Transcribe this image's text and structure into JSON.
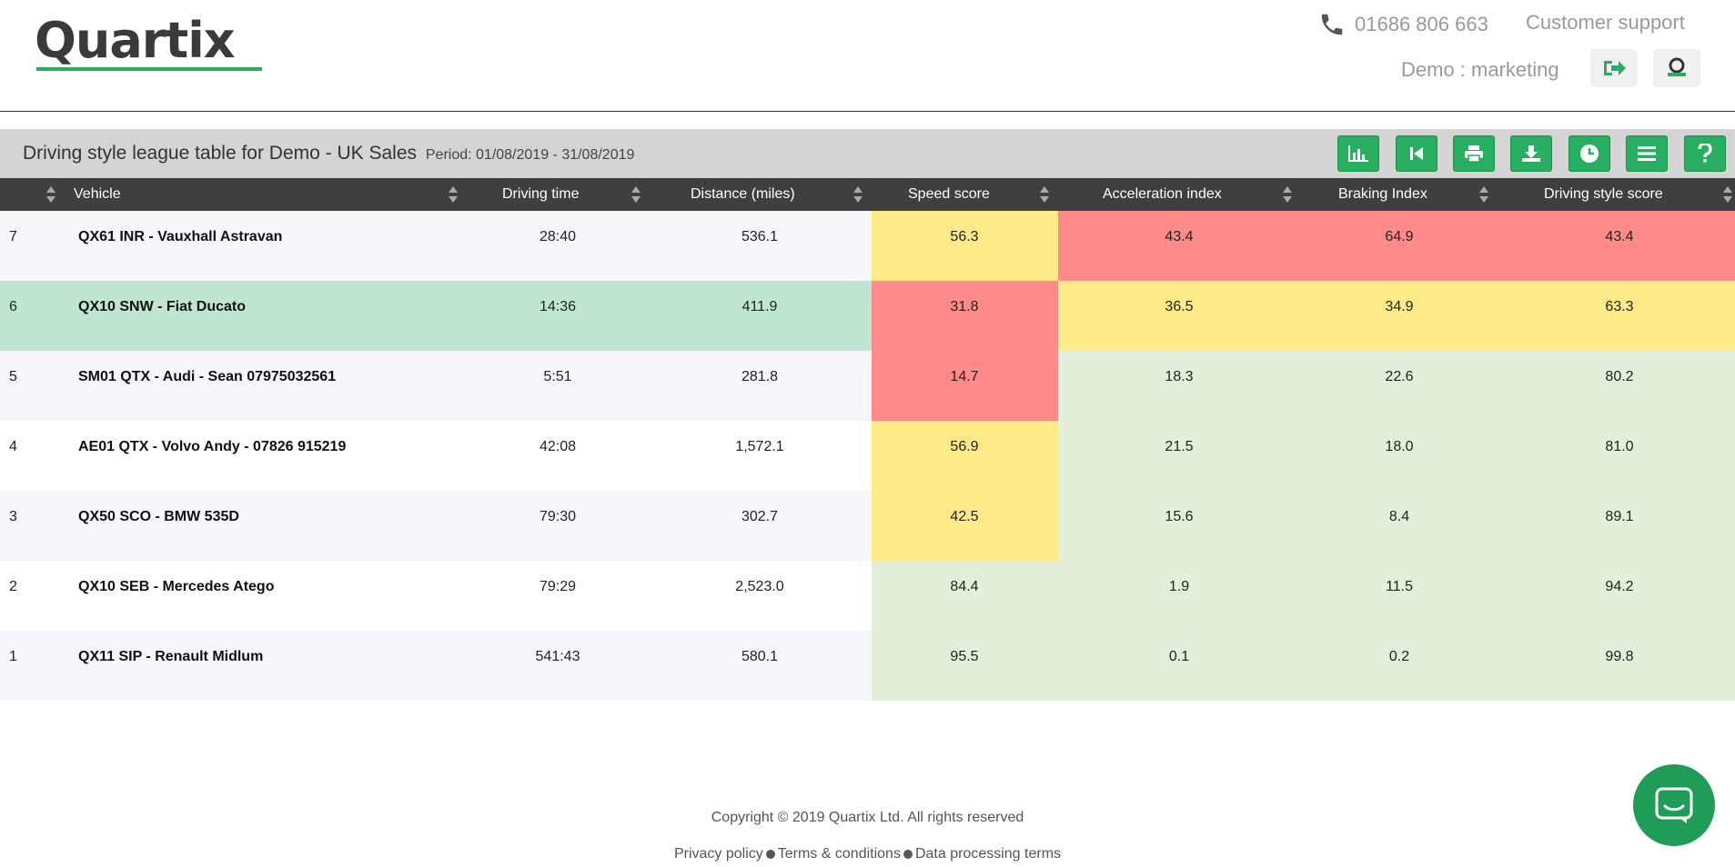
{
  "header": {
    "logo_text": "Quartix",
    "phone": "01686 806 663",
    "support_label": "Customer support",
    "user_label": "Demo : marketing",
    "logout_icon": "logout-icon",
    "account_icon": "account-icon"
  },
  "titlebar": {
    "title": "Driving style league table for Demo - UK Sales",
    "period": "Period: 01/08/2019 - 31/08/2019",
    "buttons": [
      "chart-icon",
      "first-page-icon",
      "print-icon",
      "download-icon",
      "clock-icon",
      "menu-icon",
      "help-icon"
    ]
  },
  "columns": {
    "rank": "",
    "vehicle": "Vehicle",
    "driving_time": "Driving time",
    "distance": "Distance (miles)",
    "speed": "Speed score",
    "acceleration": "Acceleration index",
    "braking": "Braking Index",
    "style": "Driving style score"
  },
  "colors": {
    "red": "#ff8a8a",
    "yellow": "#ffea8a",
    "green_light": "#e2efdb",
    "row_highlight": "#bfe6d1",
    "row_odd": "#f5f7fa",
    "row_even": "#ffffff",
    "accent": "#27ae60"
  },
  "rows": [
    {
      "rank": "7",
      "vehicle": "QX61 INR - Vauxhall Astravan",
      "driving_time": "28:40",
      "distance": "536.1",
      "speed": "56.3",
      "acceleration": "43.4",
      "braking": "64.9",
      "style": "43.4"
    },
    {
      "rank": "6",
      "vehicle": "QX10 SNW - Fiat Ducato",
      "driving_time": "14:36",
      "distance": "411.9",
      "speed": "31.8",
      "acceleration": "36.5",
      "braking": "34.9",
      "style": "63.3"
    },
    {
      "rank": "5",
      "vehicle": "SM01 QTX - Audi - Sean 07975032561",
      "driving_time": "5:51",
      "distance": "281.8",
      "speed": "14.7",
      "acceleration": "18.3",
      "braking": "22.6",
      "style": "80.2"
    },
    {
      "rank": "4",
      "vehicle": "AE01 QTX - Volvo Andy - 07826 915219",
      "driving_time": "42:08",
      "distance": "1,572.1",
      "speed": "56.9",
      "acceleration": "21.5",
      "braking": "18.0",
      "style": "81.0"
    },
    {
      "rank": "3",
      "vehicle": "QX50 SCO - BMW 535D",
      "driving_time": "79:30",
      "distance": "302.7",
      "speed": "42.5",
      "acceleration": "15.6",
      "braking": "8.4",
      "style": "89.1"
    },
    {
      "rank": "2",
      "vehicle": "QX10 SEB - Mercedes Atego",
      "driving_time": "79:29",
      "distance": "2,523.0",
      "speed": "84.4",
      "acceleration": "1.9",
      "braking": "11.5",
      "style": "94.2"
    },
    {
      "rank": "1",
      "vehicle": "QX11 SIP - Renault Midlum",
      "driving_time": "541:43",
      "distance": "580.1",
      "speed": "95.5",
      "acceleration": "0.1",
      "braking": "0.2",
      "style": "99.8"
    }
  ],
  "footer": {
    "copyright": "Copyright © 2019 Quartix Ltd. All rights reserved",
    "privacy": "Privacy policy",
    "terms": "Terms & conditions",
    "data_terms": "Data processing terms"
  },
  "chat_icon": "chat-icon"
}
